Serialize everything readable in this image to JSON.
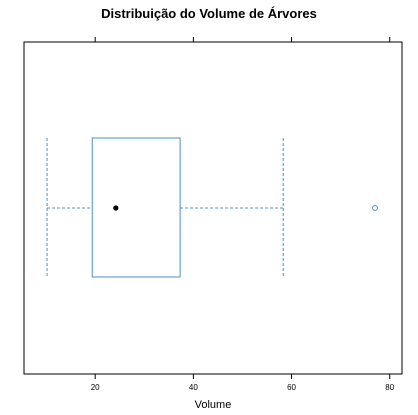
{
  "chart_data": {
    "type": "boxplot",
    "title": "Distribuição do Volume de Árvores",
    "xlabel": "Volume",
    "ylabel": "",
    "xlim": [
      5.5,
      82.5
    ],
    "x_ticks": [
      20,
      40,
      60,
      80
    ],
    "x_tick_labels": [
      "20",
      "40",
      "60",
      "80"
    ],
    "grid": false,
    "box": {
      "whisker_low": 10.2,
      "q1": 19.4,
      "median": 24.2,
      "q3": 37.3,
      "whisker_high": 58.3
    },
    "outliers": [
      77.0
    ],
    "colors": {
      "box": "#4a90c8",
      "median_point": "#000000",
      "outlier": "#4a90c8",
      "frame": "#000000"
    }
  }
}
